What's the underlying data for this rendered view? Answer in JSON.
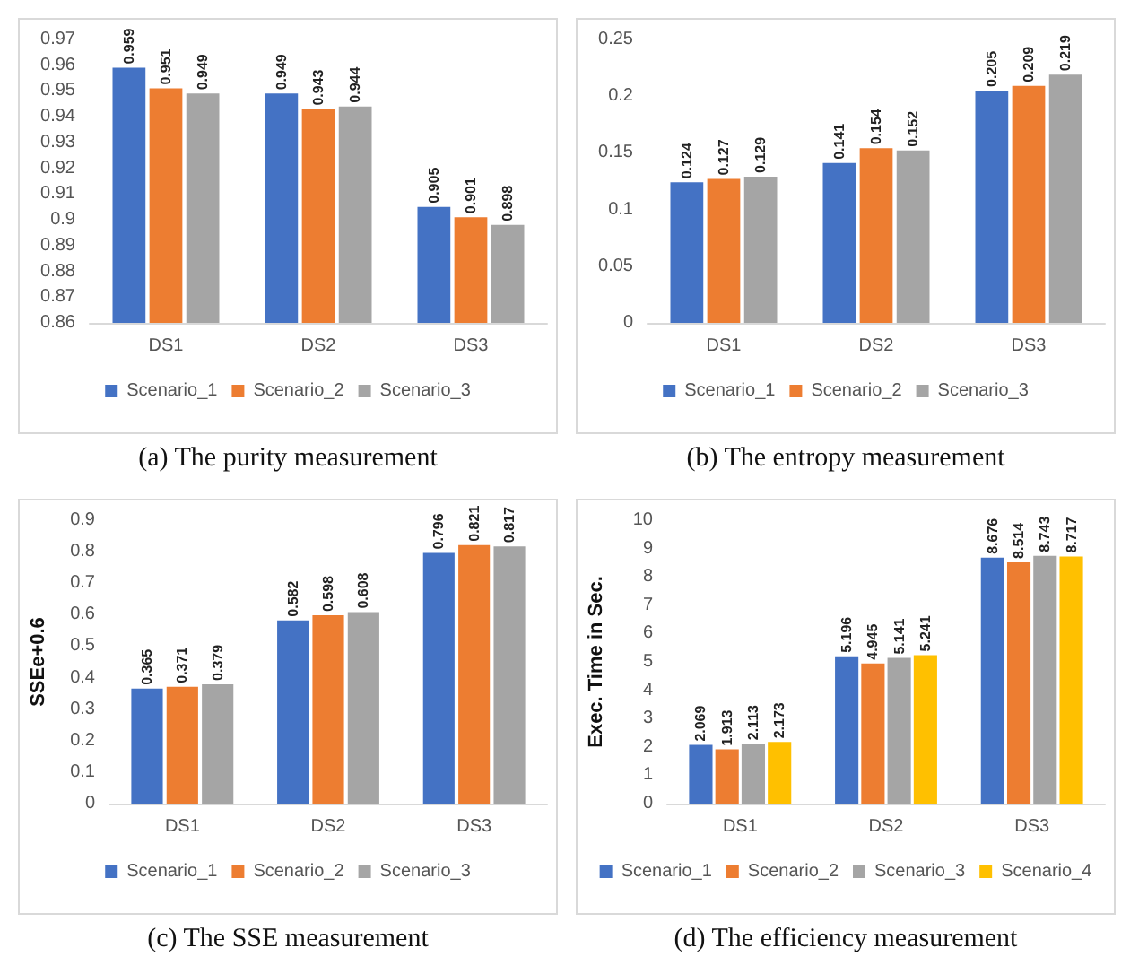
{
  "chart_data": [
    {
      "type": "bar",
      "title": "(a) The purity measurement",
      "categories": [
        "DS1",
        "DS2",
        "DS3"
      ],
      "series": [
        {
          "name": "Scenario_1",
          "color": "#4472c4",
          "values": [
            0.959,
            0.949,
            0.905
          ]
        },
        {
          "name": "Scenario_2",
          "color": "#ed7d31",
          "values": [
            0.951,
            0.943,
            0.901
          ]
        },
        {
          "name": "Scenario_3",
          "color": "#a5a5a5",
          "values": [
            0.949,
            0.944,
            0.898
          ]
        }
      ],
      "ylim": [
        0.86,
        0.97
      ],
      "yticks": [
        0.86,
        0.87,
        0.88,
        0.89,
        0.9,
        0.91,
        0.92,
        0.93,
        0.94,
        0.95,
        0.96,
        0.97
      ],
      "data_labels": true,
      "legend": "bottom"
    },
    {
      "type": "bar",
      "title": "(b) The entropy measurement",
      "categories": [
        "DS1",
        "DS2",
        "DS3"
      ],
      "series": [
        {
          "name": "Scenario_1",
          "color": "#4472c4",
          "values": [
            0.124,
            0.141,
            0.205
          ]
        },
        {
          "name": "Scenario_2",
          "color": "#ed7d31",
          "values": [
            0.127,
            0.154,
            0.209
          ]
        },
        {
          "name": "Scenario_3",
          "color": "#a5a5a5",
          "values": [
            0.129,
            0.152,
            0.219
          ]
        }
      ],
      "ylim": [
        0,
        0.25
      ],
      "yticks": [
        0,
        0.05,
        0.1,
        0.15,
        0.2,
        0.25
      ],
      "data_labels": true,
      "legend": "bottom"
    },
    {
      "type": "bar",
      "title": "(c) The SSE measurement",
      "ylabel": "SSEe+0.6",
      "categories": [
        "DS1",
        "DS2",
        "DS3"
      ],
      "series": [
        {
          "name": "Scenario_1",
          "color": "#4472c4",
          "values": [
            0.365,
            0.582,
            0.796
          ]
        },
        {
          "name": "Scenario_2",
          "color": "#ed7d31",
          "values": [
            0.371,
            0.598,
            0.821
          ]
        },
        {
          "name": "Scenario_3",
          "color": "#a5a5a5",
          "values": [
            0.379,
            0.608,
            0.817
          ]
        }
      ],
      "ylim": [
        0,
        0.9
      ],
      "yticks": [
        0,
        0.1,
        0.2,
        0.3,
        0.4,
        0.5,
        0.6,
        0.7,
        0.8,
        0.9
      ],
      "data_labels": true,
      "legend": "bottom"
    },
    {
      "type": "bar",
      "title": "(d) The efficiency measurement",
      "ylabel": "Exec. Time in Sec.",
      "categories": [
        "DS1",
        "DS2",
        "DS3"
      ],
      "series": [
        {
          "name": "Scenario_1",
          "color": "#4472c4",
          "values": [
            2.069,
            5.196,
            8.676
          ]
        },
        {
          "name": "Scenario_2",
          "color": "#ed7d31",
          "values": [
            1.913,
            4.945,
            8.514
          ]
        },
        {
          "name": "Scenario_3",
          "color": "#a5a5a5",
          "values": [
            2.113,
            5.141,
            8.743
          ]
        },
        {
          "name": "Scenario_4",
          "color": "#ffc000",
          "values": [
            2.173,
            5.241,
            8.717
          ]
        }
      ],
      "ylim": [
        0,
        10
      ],
      "yticks": [
        0,
        1,
        2,
        3,
        4,
        5,
        6,
        7,
        8,
        9,
        10
      ],
      "data_labels": true,
      "legend": "bottom"
    }
  ]
}
